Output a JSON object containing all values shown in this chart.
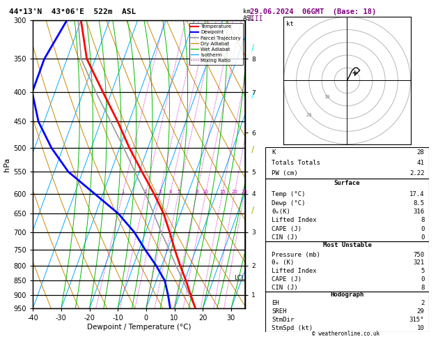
{
  "title_left": "44°13'N  43°06'E  522m  ASL",
  "title_right": "29.06.2024  06GMT  (Base: 18)",
  "xlabel": "Dewpoint / Temperature (°C)",
  "ylabel_left": "hPa",
  "pressure_levels": [
    300,
    350,
    400,
    450,
    500,
    550,
    600,
    650,
    700,
    750,
    800,
    850,
    900,
    950
  ],
  "pressure_min": 300,
  "pressure_max": 950,
  "temp_min": -40,
  "temp_max": 35,
  "background_color": "#ffffff",
  "isotherm_color": "#00aaff",
  "dry_adiabat_color": "#cc8800",
  "wet_adiabat_color": "#00bb00",
  "mixing_ratio_color": "#cc00cc",
  "mixing_ratio_values": [
    1,
    2,
    3,
    4,
    5,
    8,
    10,
    15,
    20,
    25
  ],
  "temp_profile_pressure": [
    950,
    900,
    850,
    800,
    750,
    700,
    650,
    600,
    550,
    500,
    450,
    400,
    350,
    300
  ],
  "temp_profile_temp": [
    17.4,
    14.0,
    10.5,
    6.5,
    2.5,
    -1.5,
    -6.0,
    -12.0,
    -19.0,
    -26.5,
    -34.0,
    -43.0,
    -53.0,
    -60.0
  ],
  "dewp_profile_pressure": [
    950,
    900,
    850,
    800,
    750,
    700,
    650,
    600,
    550,
    500,
    450,
    400,
    350,
    300
  ],
  "dewp_profile_temp": [
    8.5,
    6.0,
    3.0,
    -2.0,
    -8.0,
    -14.0,
    -22.0,
    -33.0,
    -45.0,
    -54.0,
    -62.0,
    -68.0,
    -68.0,
    -65.0
  ],
  "parcel_pressure": [
    950,
    900,
    850,
    800,
    750,
    700,
    650,
    600,
    550,
    500,
    450,
    400,
    350,
    300
  ],
  "parcel_temp": [
    17.4,
    13.5,
    9.5,
    5.0,
    0.5,
    -4.5,
    -9.5,
    -15.0,
    -21.5,
    -28.5,
    -36.5,
    -45.5,
    -55.0,
    -61.0
  ],
  "temp_color": "#ff0000",
  "dewp_color": "#0000ff",
  "parcel_color": "#999999",
  "km_ticks_p": [
    900,
    800,
    700,
    600,
    550,
    470,
    400,
    350
  ],
  "km_labels": [
    1,
    2,
    3,
    4,
    5,
    6,
    7,
    8
  ],
  "lcl_pressure": 840,
  "skew": 37,
  "stats": {
    "K": 28,
    "Totals_Totals": 41,
    "PW_cm": "2.22",
    "Surface_Temp": "17.4",
    "Surface_Dewp": "8.5",
    "Surface_thetae": 316,
    "Surface_LI": 8,
    "Surface_CAPE": 0,
    "Surface_CIN": 0,
    "MU_Pressure": 750,
    "MU_thetae": 321,
    "MU_LI": 5,
    "MU_CAPE": 0,
    "MU_CIN": 8,
    "Hodo_EH": 2,
    "Hodo_SREH": 29,
    "Hodo_StmDir": "315°",
    "Hodo_StmSpd": 10
  }
}
